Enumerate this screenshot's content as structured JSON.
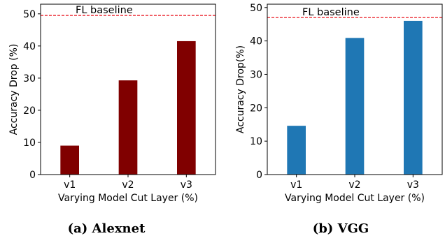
{
  "chart_data": [
    {
      "type": "bar",
      "title": "",
      "caption": "(a) Alexnet",
      "categories": [
        "v1",
        "v2",
        "v3"
      ],
      "values": [
        9,
        29.3,
        41.5
      ],
      "xlabel": "Varying Model Cut Layer (%)",
      "ylabel": "Accuracy Drop (%)",
      "ylim": [
        0,
        53
      ],
      "yticks": [
        "0",
        "10",
        "20",
        "30",
        "40",
        "50"
      ],
      "bar_color": "#800000",
      "baseline": {
        "label": "FL baseline",
        "value": 49.5,
        "color": "#e8141e",
        "style": "dashed"
      },
      "grid": false
    },
    {
      "type": "bar",
      "title": "",
      "caption": "(b) VGG",
      "categories": [
        "v1",
        "v2",
        "v3"
      ],
      "values": [
        14.6,
        40.9,
        46
      ],
      "xlabel": "Varying Model Cut Layer (%)",
      "ylabel": "Accuracy Drop(%)",
      "ylim": [
        0,
        51
      ],
      "yticks": [
        "0",
        "10",
        "20",
        "30",
        "40",
        "50"
      ],
      "bar_color": "#1f77b4",
      "baseline": {
        "label": "FL baseline",
        "value": 47,
        "color": "#e8141e",
        "style": "dashed"
      },
      "grid": false
    }
  ]
}
